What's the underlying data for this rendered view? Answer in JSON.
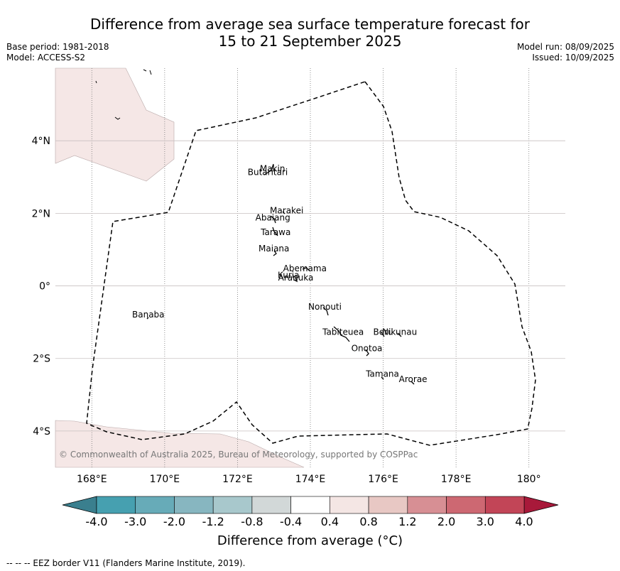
{
  "title": {
    "line1": "Difference from average sea surface temperature forecast for",
    "line2": "15 to 21 September 2025"
  },
  "meta_left": {
    "base_period": "Base period: 1981-2018",
    "model": "Model: ACCESS-S2"
  },
  "meta_right": {
    "model_run": "Model run: 08/09/2025",
    "issued": "Issued: 10/09/2025"
  },
  "map": {
    "lon_range": [
      167,
      181
    ],
    "lat_range": [
      -5,
      6
    ],
    "lon_ticks": [
      {
        "value": 168,
        "label": "168°E"
      },
      {
        "value": 170,
        "label": "170°E"
      },
      {
        "value": 172,
        "label": "172°E"
      },
      {
        "value": 174,
        "label": "174°E"
      },
      {
        "value": 176,
        "label": "176°E"
      },
      {
        "value": 178,
        "label": "178°E"
      },
      {
        "value": 180,
        "label": "180°"
      }
    ],
    "lat_ticks": [
      {
        "value": 4,
        "label": "4°N"
      },
      {
        "value": 2,
        "label": "2°N"
      },
      {
        "value": 0,
        "label": "0°"
      },
      {
        "value": -2,
        "label": "2°S"
      },
      {
        "value": -4,
        "label": "4°S"
      }
    ],
    "islands": [
      {
        "name": "Makin",
        "lon": 172.96,
        "lat": 3.15
      },
      {
        "name": "Butaritari",
        "lon": 172.83,
        "lat": 3.05
      },
      {
        "name": "Marakei",
        "lon": 173.35,
        "lat": 2.0
      },
      {
        "name": "Abaiang",
        "lon": 172.97,
        "lat": 1.8
      },
      {
        "name": "Tarawa",
        "lon": 173.05,
        "lat": 1.4
      },
      {
        "name": "Maiana",
        "lon": 173.0,
        "lat": 0.95
      },
      {
        "name": "Abemama",
        "lon": 173.85,
        "lat": 0.4
      },
      {
        "name": "Kuria",
        "lon": 173.4,
        "lat": 0.22
      },
      {
        "name": "Aranuka",
        "lon": 173.6,
        "lat": 0.15
      },
      {
        "name": "Nonouti",
        "lon": 174.4,
        "lat": -0.65
      },
      {
        "name": "Banaba",
        "lon": 169.55,
        "lat": -0.87
      },
      {
        "name": "Tabiteuea",
        "lon": 174.9,
        "lat": -1.35
      },
      {
        "name": "Beru",
        "lon": 176.0,
        "lat": -1.35
      },
      {
        "name": "Nikunau",
        "lon": 176.45,
        "lat": -1.35
      },
      {
        "name": "Onotoa",
        "lon": 175.55,
        "lat": -1.8
      },
      {
        "name": "Tamana",
        "lon": 175.98,
        "lat": -2.5
      },
      {
        "name": "Arorae",
        "lon": 176.82,
        "lat": -2.65
      }
    ],
    "copyright": "© Commonwealth of Australia 2025, Bureau of Meteorology, supported by COSPPac"
  },
  "colorbar": {
    "labels": [
      "-4.0",
      "-3.0",
      "-2.0",
      "-1.2",
      "-0.8",
      "-0.4",
      "0.4",
      "0.8",
      "1.2",
      "2.0",
      "3.0",
      "4.0"
    ],
    "colors": [
      "#46a0b0",
      "#67abb8",
      "#87b6c0",
      "#a8c8cc",
      "#d2d8d8",
      "#ffffff",
      "#f4e6e4",
      "#e8c8c4",
      "#d78f94",
      "#cd6872",
      "#c24557"
    ],
    "under_color": "#3a7f8e",
    "over_color": "#a8193a",
    "title": "Difference from average (°C)"
  },
  "footer": "--  --  -- EEZ border V11 (Flanders Marine Institute, 2019)."
}
